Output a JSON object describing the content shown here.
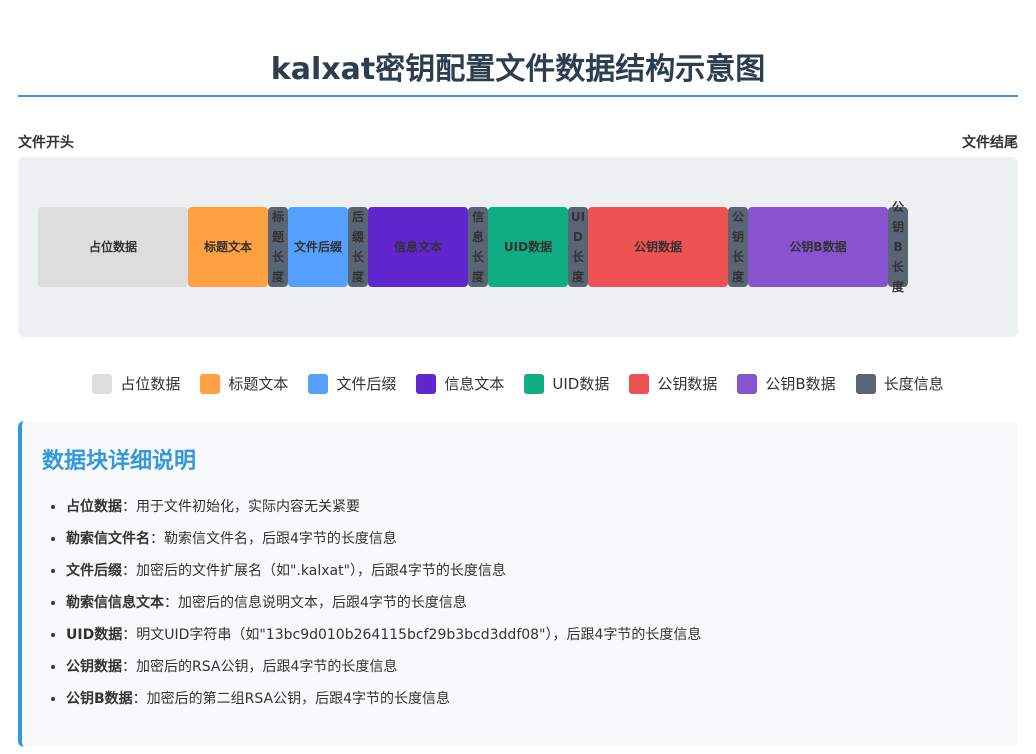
{
  "title": "kalxat密钥配置文件数据结构示意图",
  "file_start": "文件开头",
  "file_end": "文件结尾",
  "blocks": [
    {
      "label": "占位数据",
      "color": "#dddddd",
      "type": "data"
    },
    {
      "label": "标题文本",
      "color": "#ffa043",
      "type": "data"
    },
    {
      "label": "标题长度",
      "color": "#596575",
      "type": "length"
    },
    {
      "label": "文件后缀",
      "color": "#54a0ff",
      "type": "data"
    },
    {
      "label": "后缀长度",
      "color": "#596575",
      "type": "length"
    },
    {
      "label": "信息文本",
      "color": "#5f27cd",
      "type": "data"
    },
    {
      "label": "信息长度",
      "color": "#596575",
      "type": "length"
    },
    {
      "label": "UID数据",
      "color": "#10ac84",
      "type": "data"
    },
    {
      "label": "UID长度",
      "color": "#596575",
      "type": "length"
    },
    {
      "label": "公钥数据",
      "color": "#ee5253",
      "type": "data"
    },
    {
      "label": "公钥长度",
      "color": "#596575",
      "type": "length"
    },
    {
      "label": "公钥B数据",
      "color": "#8854d0",
      "type": "data"
    },
    {
      "label": "公钥B长度",
      "color": "#596575",
      "type": "length"
    }
  ],
  "legend": [
    {
      "label": "占位数据",
      "color": "#dddddd"
    },
    {
      "label": "标题文本",
      "color": "#ffa043"
    },
    {
      "label": "文件后缀",
      "color": "#54a0ff"
    },
    {
      "label": "信息文本",
      "color": "#5f27cd"
    },
    {
      "label": "UID数据",
      "color": "#10ac84"
    },
    {
      "label": "公钥数据",
      "color": "#ee5253"
    },
    {
      "label": "公钥B数据",
      "color": "#8854d0"
    },
    {
      "label": "长度信息",
      "color": "#596575"
    }
  ],
  "details": {
    "heading": "数据块详细说明",
    "items": [
      {
        "term": "占位数据",
        "text": "：用于文件初始化，实际内容无关紧要"
      },
      {
        "term": "勒索信文件名",
        "text": "：勒索信文件名，后跟4字节的长度信息"
      },
      {
        "term": "文件后缀",
        "text": "：加密后的文件扩展名（如\".kalxat\"），后跟4字节的长度信息"
      },
      {
        "term": "勒索信信息文本",
        "text": "：加密后的信息说明文本，后跟4字节的长度信息"
      },
      {
        "term": "UID数据",
        "text": "：明文UID字符串（如\"13bc9d010b264115bcf29b3bcd3ddf08\"），后跟4字节的长度信息"
      },
      {
        "term": "公钥数据",
        "text": "：加密后的RSA公钥，后跟4字节的长度信息"
      },
      {
        "term": "公钥B数据",
        "text": "：加密后的第二组RSA公钥，后跟4字节的长度信息"
      }
    ]
  }
}
